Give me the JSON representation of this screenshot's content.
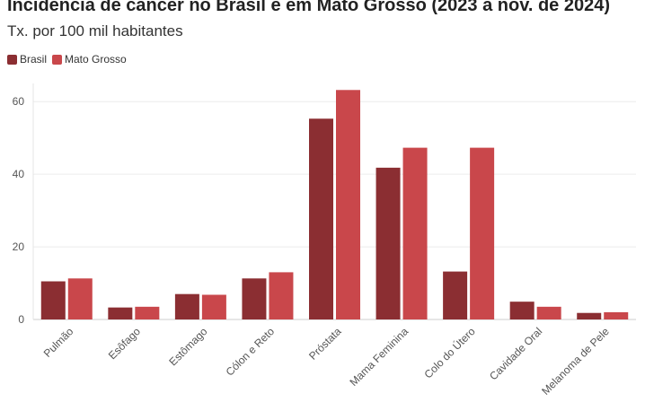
{
  "chart_data": {
    "type": "bar",
    "title": "Incidência de câncer no Brasil e em Mato Grosso (2023 a nov. de 2024)",
    "subtitle": "Tx. por 100 mil habitantes",
    "categories": [
      "Pulmão",
      "Esôfago",
      "Estômago",
      "Cólon e Reto",
      "Próstata",
      "Mama Feminina",
      "Colo do Útero",
      "Cavidade Oral",
      "Melanoma de Pele"
    ],
    "series": [
      {
        "name": "Brasil",
        "color": "#8b2e32",
        "values": [
          10.5,
          3.3,
          7.0,
          11.3,
          55.3,
          41.8,
          13.2,
          4.9,
          1.8
        ]
      },
      {
        "name": "Mato Grosso",
        "color": "#c9474b",
        "values": [
          11.3,
          3.5,
          6.8,
          13.0,
          63.2,
          47.3,
          47.3,
          3.5,
          2.0
        ]
      }
    ],
    "yticks": [
      0,
      20,
      40,
      60
    ],
    "ylim": [
      0,
      65
    ],
    "grid": true,
    "legend": "top-left"
  }
}
